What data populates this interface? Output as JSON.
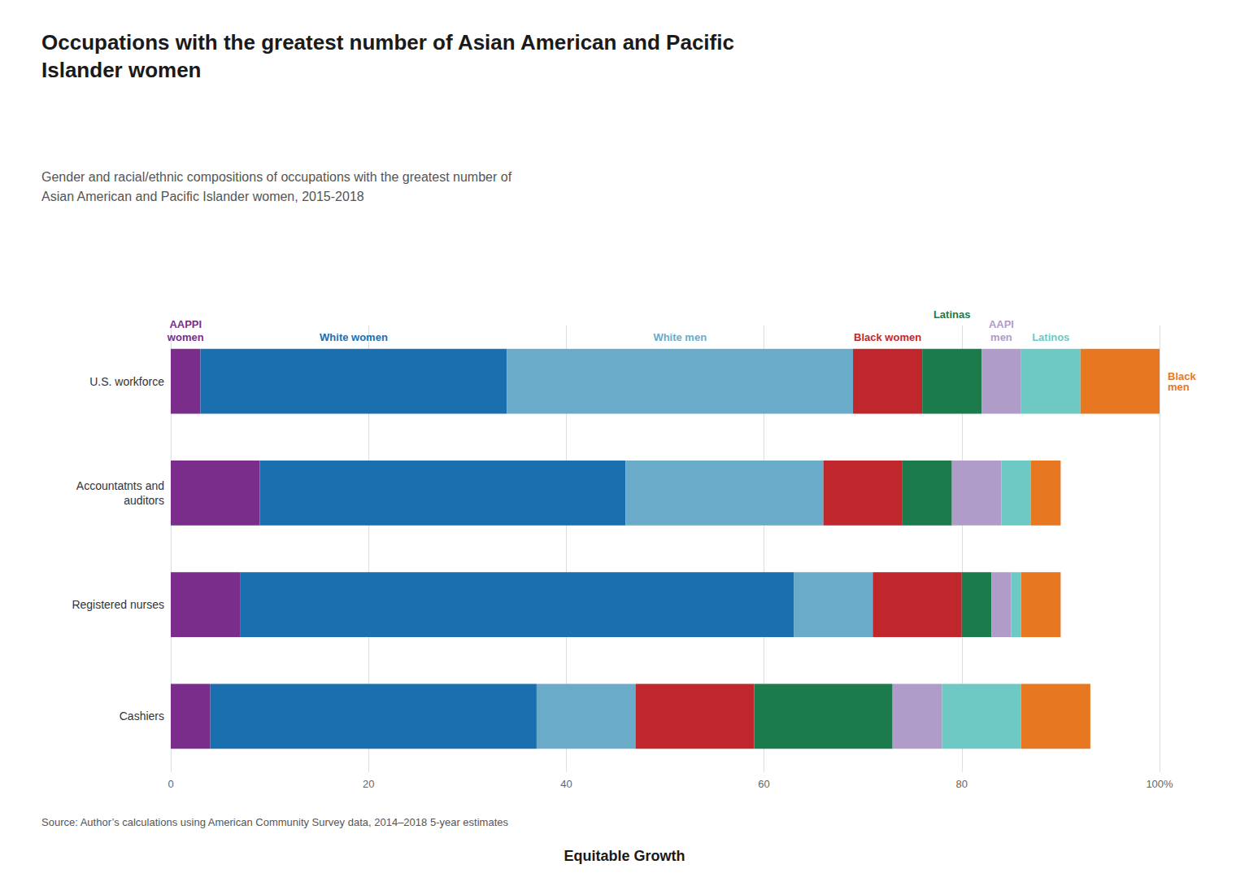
{
  "chart_data": {
    "type": "bar",
    "orientation": "horizontal",
    "stacked": true,
    "title": "Occupations with the greatest number of Asian American and Pacific\nIslander women",
    "subtitle": "Gender and racial/ethnic compositions of occupations with the greatest number of\nAsian American and Pacific Islander women, 2015-2018",
    "source": "Source: Author’s calculations using American Community Survey data, 2014–2018 5-year estimates",
    "footer": "Equitable Growth",
    "categories": [
      "U.S. workforce",
      "Accountatnts and\nauditors",
      "Registered nurses",
      "Cashiers"
    ],
    "series": [
      {
        "name": "AAPPI women",
        "color": "#7B2D8B",
        "values": [
          3,
          9,
          7,
          4
        ]
      },
      {
        "name": "White women",
        "color": "#1A6FAF",
        "values": [
          31,
          37,
          56,
          33
        ]
      },
      {
        "name": "White men",
        "color": "#6AABC9",
        "values": [
          35,
          20,
          8,
          10
        ]
      },
      {
        "name": "Black women",
        "color": "#C0272D",
        "values": [
          7,
          8,
          9,
          12
        ]
      },
      {
        "name": "Latinas",
        "color": "#1B7B4B",
        "values": [
          6,
          5,
          3,
          14
        ]
      },
      {
        "name": "AAPI men",
        "color": "#B09CC8",
        "values": [
          4,
          5,
          2,
          5
        ]
      },
      {
        "name": "Latinos",
        "color": "#6EC9C4",
        "values": [
          6,
          3,
          1,
          8
        ]
      },
      {
        "name": "Black men",
        "color": "#E87722",
        "values": [
          8,
          3,
          4,
          7
        ]
      }
    ],
    "xlim": [
      0,
      100
    ],
    "xticks": [
      0,
      20,
      40,
      60,
      80,
      {
        "value": 100,
        "label": "100%"
      }
    ],
    "grid": true
  }
}
